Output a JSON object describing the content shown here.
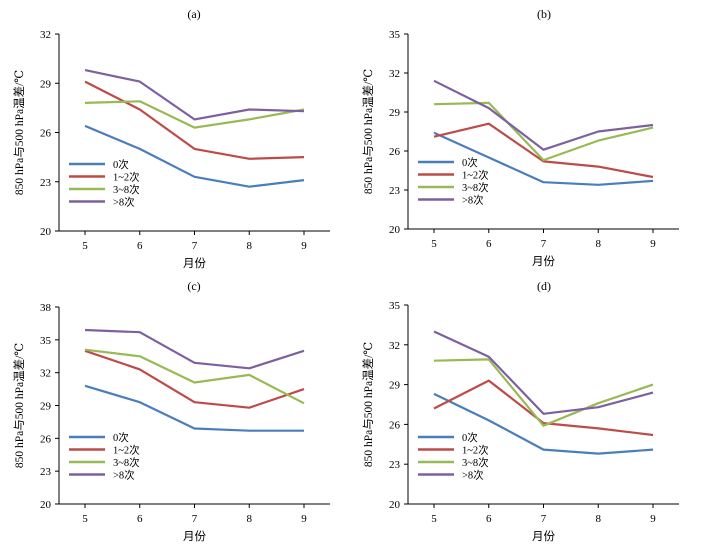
{
  "figure": {
    "series_colors": [
      "#4a7ebb",
      "#be4b48",
      "#98b954",
      "#7d60a0"
    ],
    "series_names": [
      "0次",
      "1~2次",
      "3~8次",
      ">8次"
    ]
  },
  "chart_data": [
    {
      "type": "line",
      "panel_label": "(a)",
      "xlabel": "月份",
      "ylabel": "850 hPa与500 hPa温差/℃",
      "x": [
        5,
        6,
        7,
        8,
        9
      ],
      "ylim": [
        20,
        32
      ],
      "yticks": [
        20,
        23,
        26,
        29,
        32
      ],
      "grid": false,
      "legend": "lower-left",
      "series": [
        {
          "name": "0次",
          "values": [
            26.4,
            25.0,
            23.3,
            22.7,
            23.1
          ]
        },
        {
          "name": "1~2次",
          "values": [
            29.1,
            27.4,
            25.0,
            24.4,
            24.5
          ]
        },
        {
          "name": "3~8次",
          "values": [
            27.8,
            27.9,
            26.3,
            26.8,
            27.4
          ]
        },
        {
          "name": ">8次",
          "values": [
            29.8,
            29.1,
            26.8,
            27.4,
            27.3
          ]
        }
      ]
    },
    {
      "type": "line",
      "panel_label": "(b)",
      "xlabel": "月份",
      "ylabel": "850 hPa与500 hPa温差/℃",
      "x": [
        5,
        6,
        7,
        8,
        9
      ],
      "ylim": [
        20,
        35
      ],
      "yticks": [
        20,
        23,
        26,
        29,
        32,
        35
      ],
      "grid": false,
      "legend": "lower-left",
      "series": [
        {
          "name": "0次",
          "values": [
            27.4,
            25.5,
            23.6,
            23.4,
            23.7
          ]
        },
        {
          "name": "1~2次",
          "values": [
            27.1,
            28.1,
            25.2,
            24.8,
            24.0
          ]
        },
        {
          "name": "3~8次",
          "values": [
            29.6,
            29.7,
            25.3,
            26.8,
            27.8
          ]
        },
        {
          "name": ">8次",
          "values": [
            31.4,
            29.3,
            26.1,
            27.5,
            28.0
          ]
        }
      ]
    },
    {
      "type": "line",
      "panel_label": "(c)",
      "xlabel": "月份",
      "ylabel": "850 hPa与500 hPa温差/℃",
      "x": [
        5,
        6,
        7,
        8,
        9
      ],
      "ylim": [
        20,
        38
      ],
      "yticks": [
        20,
        23,
        26,
        29,
        32,
        35,
        38
      ],
      "grid": false,
      "legend": "lower-left",
      "series": [
        {
          "name": "0次",
          "values": [
            30.8,
            29.3,
            26.9,
            26.7,
            26.7
          ]
        },
        {
          "name": "1~2次",
          "values": [
            34.0,
            32.3,
            29.3,
            28.8,
            30.5
          ]
        },
        {
          "name": "3~8次",
          "values": [
            34.1,
            33.5,
            31.1,
            31.8,
            29.2
          ]
        },
        {
          "name": ">8次",
          "values": [
            35.9,
            35.7,
            32.9,
            32.4,
            34.0
          ]
        }
      ]
    },
    {
      "type": "line",
      "panel_label": "(d)",
      "xlabel": "月份",
      "ylabel": "850 hPa与500 hPa温差/℃",
      "x": [
        5,
        6,
        7,
        8,
        9
      ],
      "ylim": [
        20,
        35
      ],
      "yticks": [
        20,
        23,
        26,
        29,
        32,
        35
      ],
      "grid": false,
      "legend": "lower-left",
      "series": [
        {
          "name": "0次",
          "values": [
            28.3,
            26.3,
            24.1,
            23.8,
            24.1
          ]
        },
        {
          "name": "1~2次",
          "values": [
            27.2,
            29.3,
            26.1,
            25.7,
            25.2
          ]
        },
        {
          "name": "3~8次",
          "values": [
            30.8,
            30.9,
            25.9,
            27.6,
            29.0
          ]
        },
        {
          "name": ">8次",
          "values": [
            33.0,
            31.1,
            26.8,
            27.3,
            28.4
          ]
        }
      ]
    }
  ]
}
